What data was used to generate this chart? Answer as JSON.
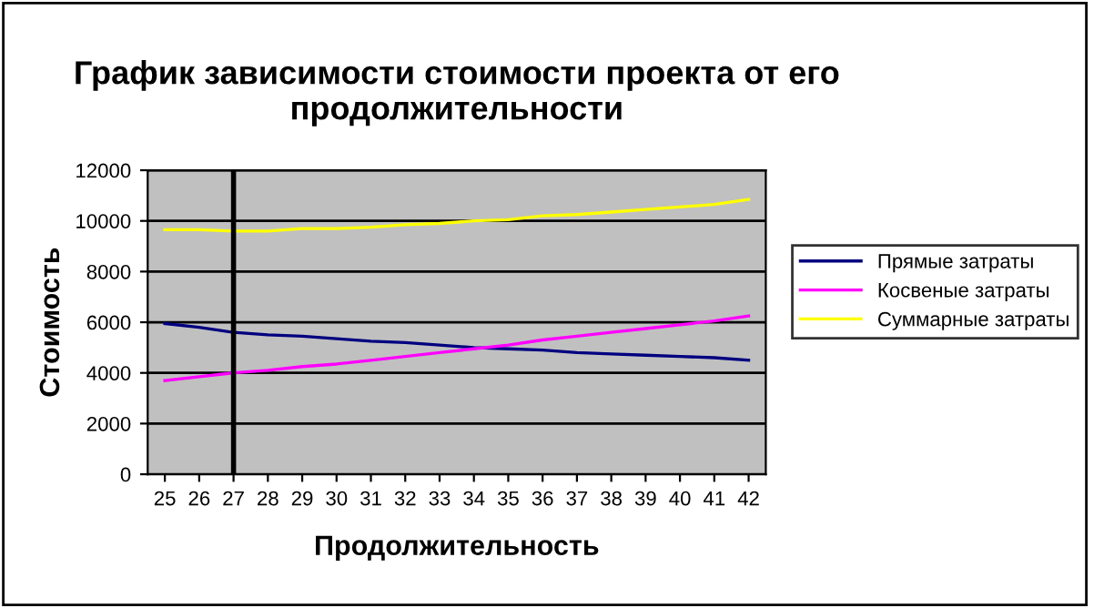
{
  "chart_data": {
    "type": "line",
    "title": "График зависимости стоимости проекта от его продолжительности",
    "xlabel": "Продолжительность",
    "ylabel": "Стоимость",
    "categories": [
      "25",
      "26",
      "27",
      "28",
      "29",
      "30",
      "31",
      "32",
      "33",
      "34",
      "35",
      "36",
      "37",
      "38",
      "39",
      "40",
      "41",
      "42"
    ],
    "series": [
      {
        "name": "Прямые затраты",
        "color": "#000080",
        "values": [
          5950,
          5800,
          5600,
          5500,
          5450,
          5350,
          5250,
          5200,
          5100,
          5000,
          4950,
          4900,
          4800,
          4750,
          4700,
          4650,
          4600,
          4500
        ]
      },
      {
        "name": "Косвеные затраты",
        "color": "#ff00ff",
        "values": [
          3700,
          3850,
          4000,
          4100,
          4250,
          4350,
          4500,
          4650,
          4800,
          4950,
          5100,
          5300,
          5450,
          5600,
          5750,
          5900,
          6050,
          6250
        ]
      },
      {
        "name": "Суммарные затраты",
        "color": "#ffff00",
        "values": [
          9650,
          9650,
          9600,
          9600,
          9700,
          9700,
          9750,
          9850,
          9900,
          10000,
          10050,
          10200,
          10250,
          10350,
          10450,
          10550,
          10650,
          10850
        ]
      }
    ],
    "ylim": [
      0,
      12000
    ],
    "yticks": [
      0,
      2000,
      4000,
      6000,
      8000,
      10000,
      12000
    ],
    "ref_lines": [
      {
        "axis": "x",
        "value": "27",
        "color": "#000000"
      }
    ],
    "grid": "y",
    "legend": "right",
    "marker": "none",
    "line_style": "solid"
  }
}
